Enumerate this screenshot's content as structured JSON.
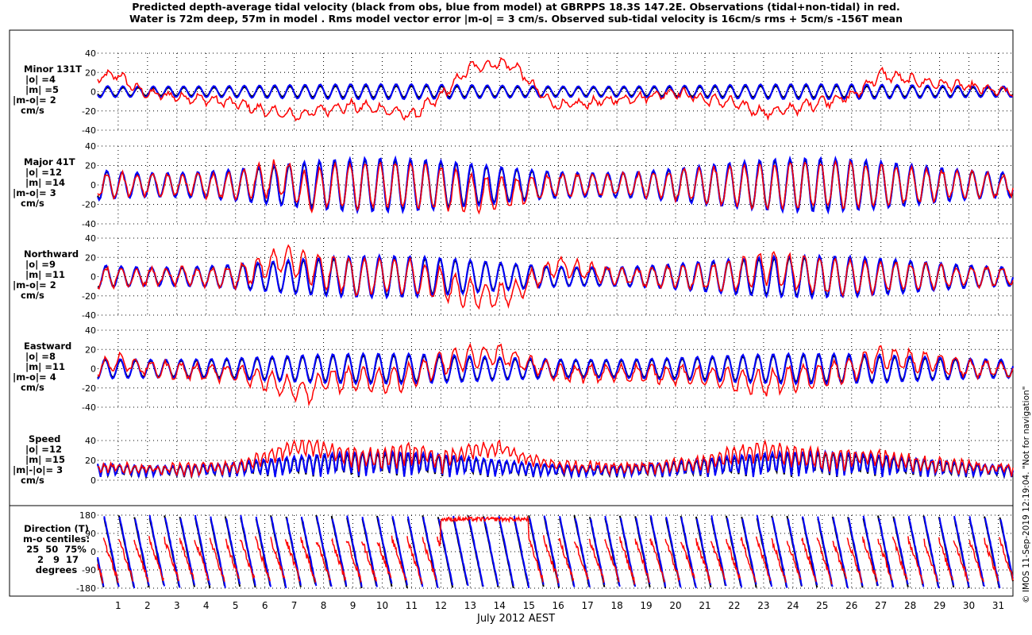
{
  "figure": {
    "title_lines": [
      "Predicted depth-average tidal velocity (black from obs, blue from model) at GBRPPS 18.3S 147.2E. Observations (tidal+non-tidal) in red.",
      "Water is 72m deep, 57m in model . Rms model vector error |m-o| = 3 cm/s. Observed sub-tidal velocity is 16cm/s rms + 5cm/s -156T mean"
    ],
    "xlabel": "July 2012 AEST",
    "credit": "© IMOS 11-Sep-2019 12:19:04. \"Not for navigation\"",
    "colors": {
      "obs_tidal": "#000000",
      "model": "#0000ff",
      "observations": "#ff0000",
      "grid": "#000000"
    }
  },
  "chart_data": {
    "type": "line",
    "x": {
      "unit": "day of July 2012",
      "range": [
        0.3,
        31.5
      ],
      "tick_labels": [
        "1",
        "2",
        "3",
        "4",
        "5",
        "6",
        "7",
        "8",
        "9",
        "10",
        "11",
        "12",
        "13",
        "14",
        "15",
        "16",
        "17",
        "18",
        "19",
        "20",
        "21",
        "22",
        "23",
        "24",
        "25",
        "26",
        "27",
        "28",
        "29",
        "30",
        "31"
      ]
    },
    "series_legend": {
      "black": "from obs (tidal)",
      "blue": "from model",
      "red": "Observations (tidal+non-tidal)"
    },
    "panels": [
      {
        "key": "minor",
        "label_lines": [
          "Minor 131T",
          "|o| =4",
          "|m| =5",
          "|m-o|= 2",
          "cm/s"
        ],
        "ylim": [
          -40,
          40
        ],
        "yticks": [
          -40,
          -20,
          0,
          20,
          40
        ],
        "tide": {
          "amplitude_obs": 6,
          "amplitude_model": 8,
          "spring_neap_mod": 0.3
        },
        "red_offset": [
          [
            0.3,
            14
          ],
          [
            1,
            18
          ],
          [
            1.5,
            5
          ],
          [
            2,
            -2
          ],
          [
            3,
            -5
          ],
          [
            4,
            -8
          ],
          [
            5,
            -12
          ],
          [
            6,
            -20
          ],
          [
            6.5,
            -22
          ],
          [
            7,
            -25
          ],
          [
            7.5,
            -22
          ],
          [
            8,
            -18
          ],
          [
            9,
            -15
          ],
          [
            10,
            -18
          ],
          [
            11,
            -25
          ],
          [
            12,
            -5
          ],
          [
            12.5,
            10
          ],
          [
            13,
            25
          ],
          [
            14,
            30
          ],
          [
            14.6,
            25
          ],
          [
            15,
            10
          ],
          [
            15.5,
            -5
          ],
          [
            16,
            -15
          ],
          [
            17,
            -12
          ],
          [
            18,
            -8
          ],
          [
            19,
            -5
          ],
          [
            20,
            0
          ],
          [
            21,
            -8
          ],
          [
            22,
            -12
          ],
          [
            23,
            -22
          ],
          [
            24,
            -18
          ],
          [
            25,
            -10
          ],
          [
            26,
            -5
          ],
          [
            27,
            18
          ],
          [
            28,
            12
          ],
          [
            29,
            8
          ],
          [
            30,
            5
          ],
          [
            31,
            0
          ],
          [
            31.5,
            0
          ]
        ]
      },
      {
        "key": "major",
        "label_lines": [
          "Major 41T",
          "|o| =12",
          "|m| =14",
          "|m-o|= 3",
          "cm/s"
        ],
        "ylim": [
          -40,
          40
        ],
        "yticks": [
          -40,
          -20,
          0,
          20,
          40
        ],
        "tide": {
          "amplitude_obs": 26,
          "amplitude_model": 28,
          "spring_neap_mod": 0.55
        },
        "red_offset": [
          [
            0.3,
            0
          ],
          [
            5,
            0
          ],
          [
            6,
            5
          ],
          [
            6.5,
            8
          ],
          [
            7,
            2
          ],
          [
            7.5,
            -10
          ],
          [
            8,
            0
          ],
          [
            9,
            0
          ],
          [
            11,
            0
          ],
          [
            12,
            -3
          ],
          [
            13,
            -8
          ],
          [
            14,
            -10
          ],
          [
            15,
            -5
          ],
          [
            16,
            0
          ],
          [
            20,
            0
          ],
          [
            22,
            0
          ],
          [
            23,
            -3
          ],
          [
            24,
            0
          ],
          [
            31.5,
            0
          ]
        ]
      },
      {
        "key": "northward",
        "label_lines": [
          "Northward",
          "|o| =9",
          "|m| =11",
          "|m-o|= 2",
          "cm/s"
        ],
        "ylim": [
          -40,
          40
        ],
        "yticks": [
          -40,
          -20,
          0,
          20,
          40
        ],
        "tide": {
          "amplitude_obs": 20,
          "amplitude_model": 22,
          "spring_neap_mod": 0.55
        },
        "red_offset": [
          [
            0.3,
            0
          ],
          [
            5,
            0
          ],
          [
            6,
            10
          ],
          [
            6.5,
            18
          ],
          [
            7,
            15
          ],
          [
            7.5,
            8
          ],
          [
            8,
            5
          ],
          [
            9,
            0
          ],
          [
            11,
            0
          ],
          [
            12,
            -8
          ],
          [
            13,
            -18
          ],
          [
            14,
            -20
          ],
          [
            14.6,
            -15
          ],
          [
            15,
            -5
          ],
          [
            16,
            12
          ],
          [
            17,
            5
          ],
          [
            18,
            0
          ],
          [
            22,
            0
          ],
          [
            23,
            10
          ],
          [
            24,
            5
          ],
          [
            25,
            0
          ],
          [
            31.5,
            0
          ]
        ]
      },
      {
        "key": "eastward",
        "label_lines": [
          "Eastward",
          "|o| =8",
          "|m| =11",
          "|m-o|= 4",
          "cm/s"
        ],
        "ylim": [
          -40,
          40
        ],
        "yticks": [
          -40,
          -20,
          0,
          20,
          40
        ],
        "tide": {
          "amplitude_obs": 14,
          "amplitude_model": 16,
          "spring_neap_mod": 0.4
        },
        "red_offset": [
          [
            0.3,
            0
          ],
          [
            1,
            8
          ],
          [
            2,
            0
          ],
          [
            5,
            -5
          ],
          [
            6,
            -12
          ],
          [
            7,
            -20
          ],
          [
            7.5,
            -25
          ],
          [
            8,
            -12
          ],
          [
            10,
            -12
          ],
          [
            11,
            -8
          ],
          [
            12,
            5
          ],
          [
            13,
            12
          ],
          [
            14,
            15
          ],
          [
            15,
            5
          ],
          [
            16,
            -5
          ],
          [
            19,
            -5
          ],
          [
            21,
            -8
          ],
          [
            22,
            -12
          ],
          [
            23,
            -15
          ],
          [
            24,
            -10
          ],
          [
            25,
            -8
          ],
          [
            26,
            0
          ],
          [
            27,
            12
          ],
          [
            28,
            8
          ],
          [
            29,
            5
          ],
          [
            30,
            0
          ],
          [
            31.5,
            0
          ]
        ]
      },
      {
        "key": "speed",
        "label_lines": [
          "Speed",
          "|o| =12",
          "|m| =15",
          "|m|-|o|= 3",
          "cm/s"
        ],
        "ylim": [
          0,
          40
        ],
        "yticks": [
          0,
          20,
          40
        ],
        "tide": {
          "amplitude_obs": 24,
          "amplitude_model": 26,
          "spring_neap_mod": 0.55
        },
        "red_offset": [
          [
            0.3,
            2
          ],
          [
            5,
            2
          ],
          [
            6,
            10
          ],
          [
            6.5,
            15
          ],
          [
            7,
            18
          ],
          [
            7.5,
            20
          ],
          [
            8,
            15
          ],
          [
            9,
            8
          ],
          [
            10,
            5
          ],
          [
            11,
            12
          ],
          [
            12,
            5
          ],
          [
            13,
            15
          ],
          [
            14,
            20
          ],
          [
            15,
            10
          ],
          [
            16,
            5
          ],
          [
            20,
            3
          ],
          [
            21,
            5
          ],
          [
            22,
            12
          ],
          [
            23,
            15
          ],
          [
            24,
            8
          ],
          [
            25,
            5
          ],
          [
            27,
            8
          ],
          [
            28,
            5
          ],
          [
            31.5,
            2
          ]
        ]
      },
      {
        "key": "direction",
        "label_lines": [
          "Direction (T)",
          "m-o centiles:",
          "25  50  75%",
          " 2   9  17",
          "degrees"
        ],
        "ylim": [
          -180,
          180
        ],
        "yticks": [
          -180,
          -90,
          0,
          90,
          180
        ],
        "tide": {
          "amplitude_obs": 180,
          "amplitude_model": 180,
          "spring_neap_mod": 0
        },
        "red_offset": [
          [
            0.3,
            0
          ],
          [
            31.5,
            0
          ]
        ]
      }
    ]
  }
}
